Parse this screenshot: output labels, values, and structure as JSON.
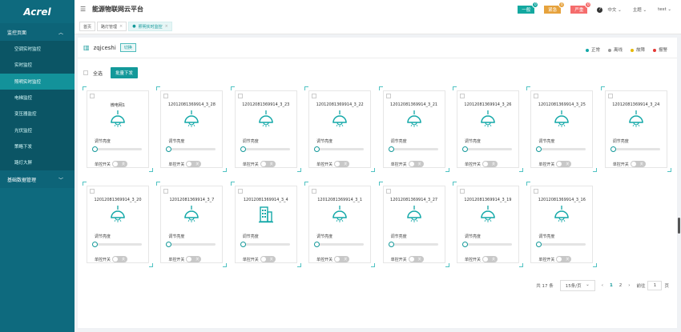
{
  "app": {
    "logo": "Acrel",
    "title": "能源物联网云平台"
  },
  "sidebar": {
    "groups": [
      {
        "label": "监控页面",
        "chevron": "︿",
        "items": [
          {
            "label": "空调实时监控"
          },
          {
            "label": "实时监控"
          },
          {
            "label": "照明实时监控",
            "active": true
          },
          {
            "label": "电梯监控"
          },
          {
            "label": "变压器监控"
          },
          {
            "label": "光伏监控"
          },
          {
            "label": "策略下发"
          },
          {
            "label": "路灯大屏"
          }
        ]
      },
      {
        "label": "基础数据管理",
        "chevron": "﹀"
      }
    ]
  },
  "tabs": [
    {
      "label": "首页"
    },
    {
      "label": "路灯管理",
      "close": "×"
    },
    {
      "label": "照明实时监控",
      "close": "×",
      "active": true
    }
  ],
  "header": {
    "alarms": [
      {
        "label": "一般",
        "count": "0",
        "color": "#13a8a0"
      },
      {
        "label": "紧急",
        "count": "0",
        "color": "#e6a23c"
      },
      {
        "label": "严重",
        "count": "0",
        "color": "#f56c6c"
      }
    ],
    "help_icon": "?",
    "language": "中文",
    "theme": "主题",
    "user": "test"
  },
  "panel": {
    "site": "zqjceshi",
    "switch_label": "切换",
    "legend": [
      {
        "label": "正常",
        "color": "#13a8a8"
      },
      {
        "label": "离线",
        "color": "#999999"
      },
      {
        "label": "故障",
        "color": "#e6b800"
      },
      {
        "label": "报警",
        "color": "#e53935"
      }
    ],
    "select_all": "全选",
    "batch_label": "批量下发"
  },
  "card_labels": {
    "brightness": "调节亮度",
    "switch": "单控开关",
    "off": "关"
  },
  "cards": [
    {
      "name": "微电网1",
      "icon": "lamp"
    },
    {
      "name": "12012081369914_3_28",
      "icon": "lamp"
    },
    {
      "name": "12012081369914_3_23",
      "icon": "lamp"
    },
    {
      "name": "12012081369914_3_22",
      "icon": "lamp"
    },
    {
      "name": "12012081369914_3_21",
      "icon": "lamp"
    },
    {
      "name": "12012081369914_3_26",
      "icon": "lamp"
    },
    {
      "name": "12012081369914_3_25",
      "icon": "lamp"
    },
    {
      "name": "12012081369914_3_24",
      "icon": "lamp"
    },
    {
      "name": "12012081369914_3_20",
      "icon": "lamp"
    },
    {
      "name": "12012081369914_3_7",
      "icon": "lamp"
    },
    {
      "name": "12012081369914_3_4",
      "icon": "building"
    },
    {
      "name": "12012081369914_3_1",
      "icon": "lamp"
    },
    {
      "name": "12012081369914_3_27",
      "icon": "lamp"
    },
    {
      "name": "12012081369914_3_19",
      "icon": "lamp"
    },
    {
      "name": "12012081369914_3_16",
      "icon": "lamp"
    }
  ],
  "pagination": {
    "total": "共 17 条",
    "page_size": "15条/页",
    "prev": "‹",
    "pages": [
      "1",
      "2"
    ],
    "current": "1",
    "next": "›",
    "goto_label": "前往",
    "goto_value": "1",
    "page_unit": "页"
  }
}
